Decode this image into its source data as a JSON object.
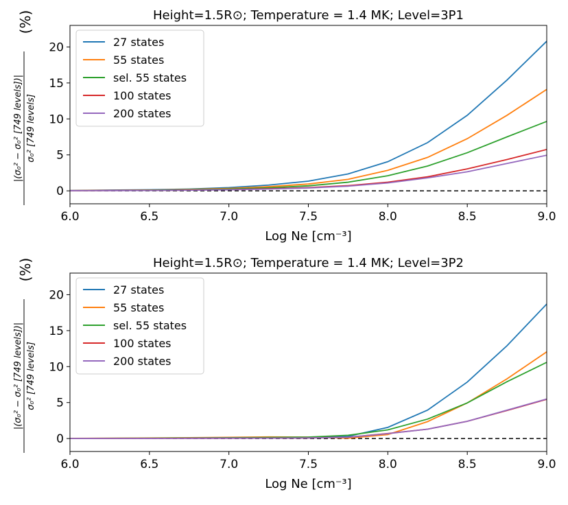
{
  "chart_data": [
    {
      "type": "line",
      "title": "Height=1.5R⊙; Temperature = 1.4 MK; Level=3P1",
      "xlabel": "Log Ne [cm⁻³]",
      "ylabel_numerator": "|(σ₀² − σ₀² [749 levels])|",
      "ylabel_denominator": "σ₀² [749 levels]",
      "ylabel_unit": "(%)",
      "xlim": [
        6.0,
        9.0
      ],
      "ylim": [
        -1.8,
        23.0
      ],
      "xticks": [
        6.0,
        6.5,
        7.0,
        7.5,
        8.0,
        8.5,
        9.0
      ],
      "xtick_labels": [
        "6.0",
        "6.5",
        "7.0",
        "7.5",
        "8.0",
        "8.5",
        "9.0"
      ],
      "yticks": [
        0,
        5,
        10,
        15,
        20
      ],
      "ytick_labels": [
        "0",
        "5",
        "10",
        "15",
        "20"
      ],
      "legend_position": "top-left",
      "reference_line": {
        "y": 0,
        "style": "dashed",
        "color": "#000000"
      },
      "x": [
        6.0,
        6.25,
        6.5,
        6.75,
        7.0,
        7.25,
        7.5,
        7.75,
        8.0,
        8.25,
        8.5,
        8.75,
        9.0
      ],
      "series": [
        {
          "name": "27 states",
          "color": "#1f77b4",
          "values": [
            0.05,
            0.1,
            0.15,
            0.25,
            0.45,
            0.8,
            1.35,
            2.35,
            4.05,
            6.7,
            10.5,
            15.4,
            20.8
          ]
        },
        {
          "name": "55 states",
          "color": "#ff7f0e",
          "values": [
            0.03,
            0.07,
            0.11,
            0.2,
            0.33,
            0.58,
            0.95,
            1.6,
            2.85,
            4.65,
            7.25,
            10.5,
            14.1
          ]
        },
        {
          "name": "sel. 55 states",
          "color": "#2ca02c",
          "values": [
            0.02,
            0.05,
            0.09,
            0.15,
            0.25,
            0.42,
            0.7,
            1.2,
            2.1,
            3.45,
            5.3,
            7.5,
            9.65
          ]
        },
        {
          "name": "100 states",
          "color": "#d62728",
          "values": [
            0.02,
            0.04,
            0.06,
            0.1,
            0.17,
            0.3,
            0.45,
            0.72,
            1.2,
            1.95,
            3.05,
            4.35,
            5.75
          ]
        },
        {
          "name": "200 states",
          "color": "#9467bd",
          "values": [
            0.02,
            0.03,
            0.05,
            0.09,
            0.15,
            0.25,
            0.4,
            0.65,
            1.1,
            1.8,
            2.65,
            3.8,
            4.95
          ]
        }
      ]
    },
    {
      "type": "line",
      "title": "Height=1.5R⊙; Temperature = 1.4 MK; Level=3P2",
      "xlabel": "Log Ne [cm⁻³]",
      "ylabel_numerator": "|(σ₀² − σ₀² [749 levels])|",
      "ylabel_denominator": "σ₀² [749 levels]",
      "ylabel_unit": "(%)",
      "xlim": [
        6.0,
        9.0
      ],
      "ylim": [
        -1.8,
        23.0
      ],
      "xticks": [
        6.0,
        6.5,
        7.0,
        7.5,
        8.0,
        8.5,
        9.0
      ],
      "xtick_labels": [
        "6.0",
        "6.5",
        "7.0",
        "7.5",
        "8.0",
        "8.5",
        "9.0"
      ],
      "yticks": [
        0,
        5,
        10,
        15,
        20
      ],
      "ytick_labels": [
        "0",
        "5",
        "10",
        "15",
        "20"
      ],
      "legend_position": "top-left",
      "reference_line": {
        "y": 0,
        "style": "dashed",
        "color": "#000000"
      },
      "x": [
        6.0,
        6.25,
        6.5,
        6.75,
        7.0,
        7.25,
        7.5,
        7.75,
        8.0,
        8.25,
        8.5,
        8.75,
        9.0
      ],
      "series": [
        {
          "name": "27 states",
          "color": "#1f77b4",
          "values": [
            0.0,
            0.02,
            0.04,
            0.06,
            0.09,
            0.12,
            0.15,
            0.3,
            1.55,
            3.95,
            7.85,
            12.9,
            18.7
          ]
        },
        {
          "name": "55 states",
          "color": "#ff7f0e",
          "values": [
            0.02,
            0.05,
            0.08,
            0.12,
            0.17,
            0.22,
            0.2,
            0.05,
            0.55,
            2.35,
            4.95,
            8.3,
            12.05
          ]
        },
        {
          "name": "sel. 55 states",
          "color": "#2ca02c",
          "values": [
            0.01,
            0.03,
            0.05,
            0.08,
            0.12,
            0.15,
            0.2,
            0.45,
            1.2,
            2.7,
            4.95,
            7.9,
            10.6
          ]
        },
        {
          "name": "100 states",
          "color": "#d62728",
          "values": [
            0.0,
            0.01,
            0.02,
            0.03,
            0.04,
            0.05,
            0.08,
            0.18,
            0.7,
            1.3,
            2.4,
            3.9,
            5.45
          ]
        },
        {
          "name": "200 states",
          "color": "#9467bd",
          "values": [
            0.0,
            0.01,
            0.02,
            0.03,
            0.04,
            0.05,
            0.08,
            0.18,
            0.68,
            1.3,
            2.4,
            3.95,
            5.5
          ]
        }
      ]
    }
  ]
}
